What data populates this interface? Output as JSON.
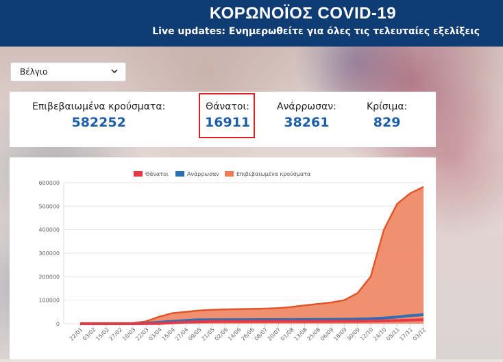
{
  "header": {
    "title": "ΚΟΡΩΝΟΪΟΣ COVID-19",
    "subtitle": "Live updates: Ενημερωθείτε για όλες τις τελευταίες εξελίξεις"
  },
  "country_select": {
    "selected": "Βέλγιο",
    "icon": "chevron-down-icon"
  },
  "stats": {
    "confirmed": {
      "label": "Επιβεβαιωμένα κρούσματα:",
      "value": "582252"
    },
    "deaths": {
      "label": "Θάνατοι:",
      "value": "16911"
    },
    "recovered": {
      "label": "Ανάρρωσαν:",
      "value": "38261"
    },
    "critical": {
      "label": "Κρίσιμα:",
      "value": "829"
    }
  },
  "colors": {
    "header_bg": "#0f3d73",
    "value_blue": "#1c5ea7",
    "highlight_red": "#e02020",
    "deaths": "#e63946",
    "recovered": "#2f6db5",
    "confirmed": "#ef7d56"
  },
  "chart_data": {
    "type": "area",
    "title": "",
    "xlabel": "",
    "ylabel": "",
    "ylim": [
      0,
      600000
    ],
    "yticks": [
      0,
      100000,
      200000,
      300000,
      400000,
      500000,
      600000
    ],
    "ytick_labels": [
      "0",
      "100000",
      "200000",
      "300000",
      "400000",
      "500000",
      "600000"
    ],
    "x_labels": [
      "22/01",
      "03/02",
      "15/02",
      "27/02",
      "10/03",
      "22/03",
      "03/04",
      "15/04",
      "27/04",
      "09/05",
      "21/05",
      "02/06",
      "14/06",
      "26/06",
      "08/07",
      "20/07",
      "01/08",
      "13/08",
      "25/08",
      "06/09",
      "18/09",
      "30/09",
      "12/10",
      "24/10",
      "05/11",
      "17/11",
      "03/12"
    ],
    "legend": [
      "Θάνατοι",
      "Ανάρρωσαν",
      "Επιβεβαιωμένα κρούσματα"
    ],
    "legend_position": "top",
    "series": [
      {
        "name": "Θάνατοι",
        "points": [
          [
            0,
            0
          ],
          [
            4,
            0
          ],
          [
            6,
            500
          ],
          [
            7,
            3500
          ],
          [
            8,
            6500
          ],
          [
            9,
            8200
          ],
          [
            10,
            9300
          ],
          [
            12,
            9700
          ],
          [
            14,
            9800
          ],
          [
            17,
            9900
          ],
          [
            19,
            10000
          ],
          [
            20,
            10100
          ],
          [
            21,
            10300
          ],
          [
            22,
            10700
          ],
          [
            23,
            11600
          ],
          [
            24,
            13500
          ],
          [
            25,
            15200
          ],
          [
            26,
            16911
          ]
        ]
      },
      {
        "name": "Ανάρρωσαν",
        "points": [
          [
            0,
            0
          ],
          [
            1,
            0
          ],
          [
            2,
            100
          ],
          [
            4,
            300
          ],
          [
            5,
            2000
          ],
          [
            6,
            6000
          ],
          [
            7,
            10000
          ],
          [
            8,
            14000
          ],
          [
            9,
            16500
          ],
          [
            10,
            17000
          ],
          [
            12,
            17300
          ],
          [
            14,
            17500
          ],
          [
            16,
            17900
          ],
          [
            18,
            18400
          ],
          [
            19,
            18700
          ],
          [
            20,
            19000
          ],
          [
            21,
            19500
          ],
          [
            22,
            21000
          ],
          [
            23,
            24000
          ],
          [
            24,
            28500
          ],
          [
            25,
            34000
          ],
          [
            26,
            38261
          ]
        ]
      },
      {
        "name": "Επιβεβαιωμένα κρούσματα",
        "points": [
          [
            0,
            0
          ],
          [
            1,
            0
          ],
          [
            2,
            0
          ],
          [
            3,
            1000
          ],
          [
            4,
            2500
          ],
          [
            5,
            10000
          ],
          [
            6,
            30000
          ],
          [
            7,
            45000
          ],
          [
            8,
            50000
          ],
          [
            9,
            56000
          ],
          [
            10,
            59000
          ],
          [
            11,
            61000
          ],
          [
            12,
            62000
          ],
          [
            13,
            63000
          ],
          [
            14,
            64000
          ],
          [
            15,
            66000
          ],
          [
            16,
            71000
          ],
          [
            17,
            78000
          ],
          [
            18,
            84000
          ],
          [
            19,
            90000
          ],
          [
            20,
            100000
          ],
          [
            21,
            130000
          ],
          [
            22,
            200000
          ],
          [
            23,
            400000
          ],
          [
            24,
            510000
          ],
          [
            25,
            555000
          ],
          [
            26,
            582252
          ]
        ]
      }
    ]
  }
}
